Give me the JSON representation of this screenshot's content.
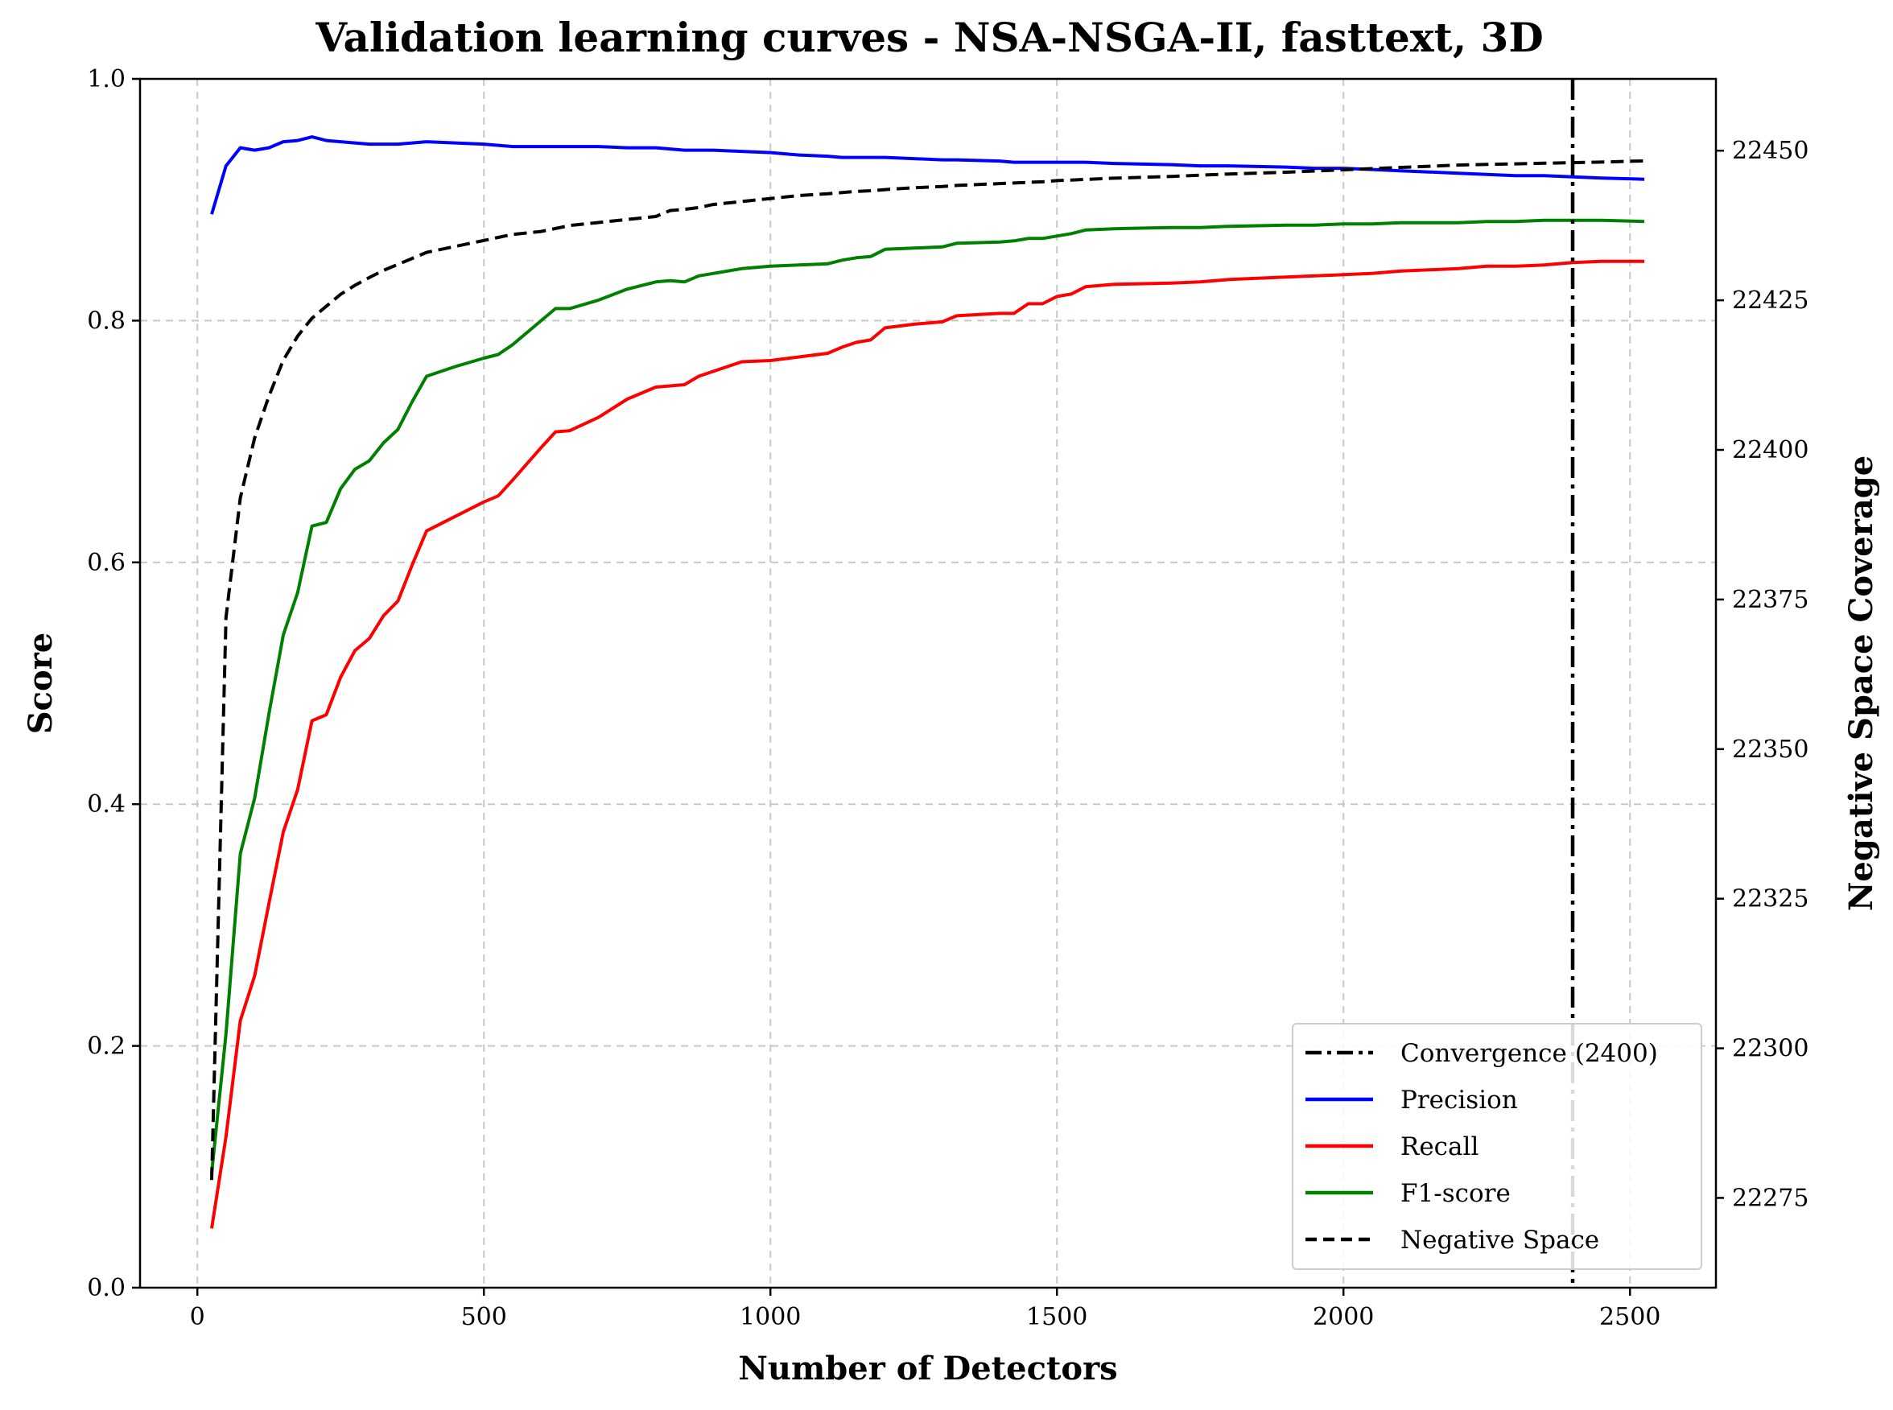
{
  "chart_data": {
    "type": "line",
    "title": "Validation learning curves - NSA-NSGA-II, fasttext, 3D",
    "xlabel": "Number of Detectors",
    "ylabel": "Score",
    "y2label": "Negative Space Coverage",
    "xlim": [
      -100,
      2650
    ],
    "ylim": [
      0,
      1
    ],
    "y2lim": [
      22260,
      22462
    ],
    "xticks": [
      0,
      500,
      1000,
      1500,
      2000,
      2500
    ],
    "yticks": [
      "0.0",
      "0.2",
      "0.4",
      "0.6",
      "0.8",
      "1.0"
    ],
    "y2ticks": [
      22275,
      22300,
      22325,
      22350,
      22375,
      22400,
      22425,
      22450
    ],
    "grid": true,
    "legend_position": "bottom-right",
    "convergence": {
      "x": 2400,
      "label": "Convergence (2400)",
      "color": "#000000"
    },
    "x": [
      25,
      50,
      75,
      100,
      125,
      150,
      175,
      200,
      225,
      250,
      275,
      300,
      325,
      350,
      375,
      400,
      450,
      500,
      525,
      550,
      600,
      625,
      650,
      700,
      750,
      800,
      825,
      850,
      875,
      900,
      950,
      1000,
      1050,
      1100,
      1125,
      1150,
      1175,
      1200,
      1250,
      1300,
      1325,
      1400,
      1425,
      1450,
      1475,
      1500,
      1525,
      1550,
      1600,
      1700,
      1750,
      1800,
      1900,
      1950,
      2000,
      2050,
      2100,
      2150,
      2200,
      2250,
      2300,
      2350,
      2400,
      2450,
      2525
    ],
    "series": [
      {
        "name": "Precision",
        "axis": "left",
        "color": "#0000ff",
        "dash": "solid",
        "values": [
          0.888,
          0.928,
          0.943,
          0.941,
          0.943,
          0.948,
          0.949,
          0.952,
          0.949,
          0.948,
          0.947,
          0.946,
          0.946,
          0.946,
          0.947,
          0.948,
          0.947,
          0.946,
          0.945,
          0.944,
          0.944,
          0.944,
          0.944,
          0.944,
          0.943,
          0.943,
          0.942,
          0.941,
          0.941,
          0.941,
          0.94,
          0.939,
          0.937,
          0.936,
          0.935,
          0.935,
          0.935,
          0.935,
          0.934,
          0.933,
          0.933,
          0.932,
          0.931,
          0.931,
          0.931,
          0.931,
          0.931,
          0.931,
          0.93,
          0.929,
          0.928,
          0.928,
          0.927,
          0.926,
          0.926,
          0.925,
          0.924,
          0.923,
          0.922,
          0.921,
          0.92,
          0.92,
          0.919,
          0.918,
          0.917
        ]
      },
      {
        "name": "Recall",
        "axis": "left",
        "color": "#ff0000",
        "dash": "solid",
        "values": [
          0.049,
          0.125,
          0.221,
          0.258,
          0.318,
          0.377,
          0.412,
          0.469,
          0.474,
          0.505,
          0.527,
          0.537,
          0.556,
          0.568,
          0.598,
          0.626,
          0.638,
          0.65,
          0.655,
          0.668,
          0.695,
          0.708,
          0.709,
          0.72,
          0.735,
          0.745,
          0.746,
          0.747,
          0.754,
          0.758,
          0.766,
          0.767,
          0.77,
          0.773,
          0.778,
          0.782,
          0.784,
          0.794,
          0.797,
          0.799,
          0.804,
          0.806,
          0.806,
          0.814,
          0.814,
          0.82,
          0.822,
          0.828,
          0.83,
          0.831,
          0.832,
          0.834,
          0.836,
          0.837,
          0.838,
          0.839,
          0.841,
          0.842,
          0.843,
          0.845,
          0.845,
          0.846,
          0.848,
          0.849,
          0.849
        ]
      },
      {
        "name": "F1-score",
        "axis": "left",
        "color": "#008000",
        "dash": "solid",
        "values": [
          0.095,
          0.21,
          0.359,
          0.405,
          0.475,
          0.54,
          0.575,
          0.63,
          0.633,
          0.661,
          0.677,
          0.684,
          0.699,
          0.71,
          0.733,
          0.754,
          0.762,
          0.769,
          0.772,
          0.78,
          0.8,
          0.81,
          0.81,
          0.817,
          0.826,
          0.832,
          0.833,
          0.832,
          0.837,
          0.839,
          0.843,
          0.845,
          0.846,
          0.847,
          0.85,
          0.852,
          0.853,
          0.859,
          0.86,
          0.861,
          0.864,
          0.865,
          0.866,
          0.868,
          0.868,
          0.87,
          0.872,
          0.875,
          0.876,
          0.877,
          0.877,
          0.878,
          0.879,
          0.879,
          0.88,
          0.88,
          0.881,
          0.881,
          0.881,
          0.882,
          0.882,
          0.883,
          0.883,
          0.883,
          0.882
        ]
      },
      {
        "name": "Negative Space",
        "axis": "right",
        "color": "#000000",
        "dash": "dashed",
        "values": [
          22278,
          22372,
          22392,
          22402,
          22409,
          22415,
          22419,
          22422,
          22424,
          22426,
          22427.5,
          22428.8,
          22430,
          22431,
          22432,
          22433,
          22434,
          22435,
          22435.5,
          22436,
          22436.5,
          22437,
          22437.5,
          22438,
          22438.5,
          22439,
          22440,
          22440.2,
          22440.5,
          22441,
          22441.5,
          22442,
          22442.5,
          22442.8,
          22443,
          22443.2,
          22443.3,
          22443.5,
          22443.8,
          22444,
          22444.2,
          22444.5,
          22444.6,
          22444.7,
          22444.8,
          22445,
          22445.1,
          22445.2,
          22445.4,
          22445.7,
          22445.9,
          22446.1,
          22446.4,
          22446.6,
          22446.8,
          22447,
          22447.2,
          22447.4,
          22447.6,
          22447.7,
          22447.8,
          22447.9,
          22448,
          22448.1,
          22448.3
        ]
      }
    ]
  }
}
